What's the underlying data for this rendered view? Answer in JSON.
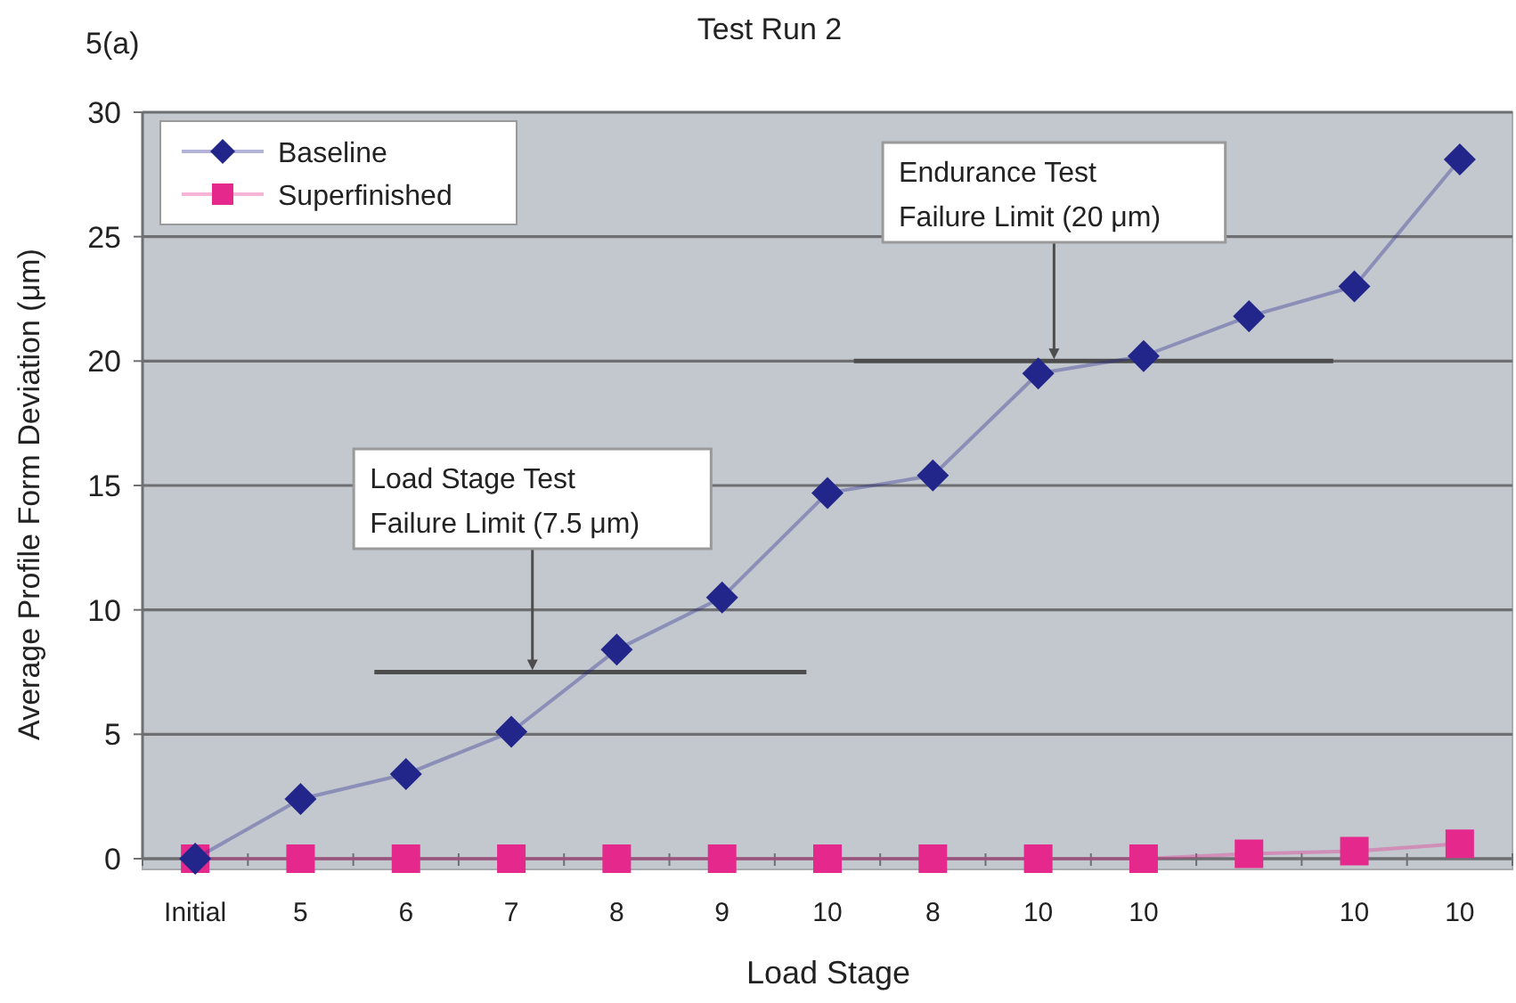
{
  "chart_data": {
    "type": "line",
    "title": "Test Run 2",
    "xlabel": "Load Stage",
    "ylabel": "Average Profile Form Deviation (μm)",
    "annotations": [
      "5(a)"
    ],
    "categories": [
      "Initial",
      "5",
      "6",
      "7",
      "8",
      "9",
      "10",
      "8",
      "10",
      "10",
      null,
      "10",
      "10"
    ],
    "series": [
      {
        "name": "Superfinished",
        "color": "#e4288c",
        "marker": "square",
        "values": [
          0,
          0,
          0,
          0,
          0,
          0,
          0,
          0,
          0,
          0,
          0.2,
          0.3,
          0.6
        ]
      },
      {
        "name": "Baseline",
        "color": "#22268a",
        "marker": "diamond",
        "values": [
          0,
          2.4,
          3.4,
          5.1,
          8.4,
          10.5,
          14.7,
          15.4,
          19.5,
          20.2,
          21.8,
          23,
          28.1
        ]
      }
    ],
    "ylim": [
      0,
      30
    ],
    "yticks": [
      0,
      5,
      10,
      15,
      20,
      25,
      30
    ],
    "grid": "y",
    "legend": "top left",
    "ref_lines": [
      {
        "axis": "y",
        "value": 7.5,
        "label": "Load Stage Test\nFailure Limit (7.5 μm)",
        "color": "#4d4d4d"
      },
      {
        "axis": "y",
        "value": 20,
        "label": "Endurance Test\nFailure Limit (20 μm)",
        "color": "#4d4d4d"
      }
    ]
  }
}
